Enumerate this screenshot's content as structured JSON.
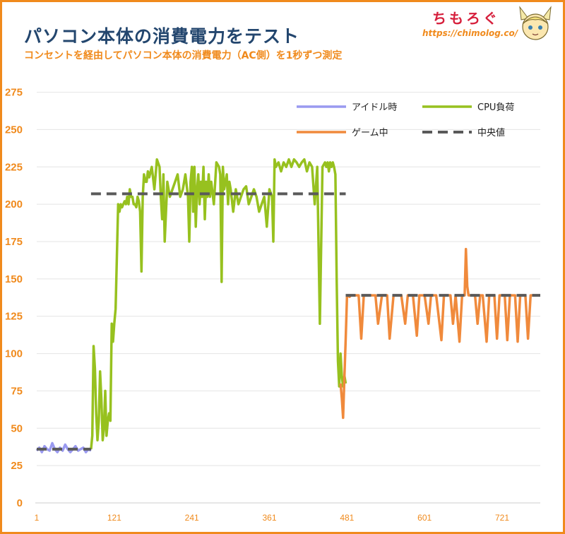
{
  "header": {
    "title": "パソコン本体の消費電力をテスト",
    "subtitle": "コンセントを経由してパソコン本体の消費電力（AC側）を1秒ずつ測定",
    "brand": "ちもろぐ",
    "brand_url": "https://chimolog.co/"
  },
  "colors": {
    "idle": "#9a9af0",
    "cpu": "#97c11f",
    "game": "#f08a3c",
    "median": "#5a5a5a",
    "tick": "#f08a1c",
    "grid": "#e4e4e4"
  },
  "chart_data": {
    "type": "line",
    "title": "",
    "xlabel": "",
    "ylabel": "",
    "xlim": [
      1,
      780
    ],
    "ylim": [
      0,
      280
    ],
    "yticks": [
      0,
      25,
      50,
      75,
      100,
      125,
      150,
      175,
      200,
      225,
      250,
      275
    ],
    "xticks": [
      1,
      121,
      241,
      361,
      481,
      601,
      721
    ],
    "grid": "horizontal",
    "legend_position": "top-right",
    "legend": [
      "アイドル時",
      "CPU負荷",
      "ゲーム中",
      "中央値"
    ],
    "series": [
      {
        "name": "アイドル時",
        "x": [
          1,
          5,
          9,
          13,
          17,
          21,
          25,
          29,
          33,
          37,
          41,
          45,
          49,
          53,
          57,
          61,
          65,
          69,
          73,
          77,
          81,
          85
        ],
        "y": [
          35,
          37,
          34,
          38,
          36,
          35,
          40,
          36,
          34,
          37,
          35,
          39,
          36,
          34,
          36,
          38,
          35,
          36,
          37,
          34,
          36,
          35
        ]
      },
      {
        "name": "CPU負荷",
        "x": [
          85,
          87,
          89,
          91,
          93,
          95,
          97,
          99,
          101,
          103,
          105,
          107,
          109,
          111,
          113,
          115,
          117,
          119,
          121,
          123,
          125,
          127,
          129,
          131,
          133,
          135,
          137,
          139,
          141,
          143,
          145,
          147,
          149,
          151,
          153,
          155,
          157,
          159,
          161,
          163,
          165,
          167,
          169,
          171,
          173,
          175,
          179,
          183,
          187,
          191,
          193,
          195,
          197,
          199,
          203,
          207,
          211,
          215,
          219,
          223,
          227,
          231,
          235,
          237,
          239,
          241,
          243,
          245,
          247,
          249,
          251,
          253,
          255,
          257,
          259,
          261,
          263,
          265,
          267,
          269,
          271,
          275,
          279,
          283,
          285,
          287,
          289,
          291,
          293,
          295,
          297,
          299,
          301,
          305,
          309,
          313,
          317,
          321,
          325,
          329,
          333,
          337,
          341,
          345,
          349,
          353,
          357,
          361,
          365,
          367,
          369,
          371,
          375,
          379,
          383,
          387,
          391,
          395,
          399,
          403,
          407,
          411,
          415,
          419,
          423,
          427,
          431,
          435,
          439,
          443,
          447,
          449,
          451,
          453,
          455,
          457,
          459,
          461,
          463,
          465,
          467,
          469,
          471,
          473,
          475,
          477,
          479
        ],
        "y": [
          36,
          45,
          105,
          90,
          60,
          42,
          55,
          88,
          70,
          42,
          50,
          75,
          45,
          55,
          60,
          55,
          120,
          108,
          120,
          130,
          165,
          200,
          195,
          200,
          198,
          200,
          202,
          200,
          205,
          200,
          210,
          205,
          205,
          200,
          200,
          198,
          205,
          202,
          195,
          155,
          205,
          220,
          215,
          215,
          222,
          218,
          225,
          210,
          230,
          225,
          205,
          190,
          220,
          175,
          215,
          205,
          210,
          215,
          220,
          205,
          210,
          220,
          205,
          175,
          215,
          225,
          195,
          225,
          185,
          210,
          220,
          200,
          215,
          205,
          225,
          190,
          215,
          205,
          220,
          205,
          215,
          200,
          228,
          225,
          220,
          148,
          225,
          210,
          215,
          220,
          200,
          215,
          210,
          195,
          210,
          200,
          205,
          210,
          212,
          200,
          205,
          210,
          205,
          195,
          200,
          205,
          185,
          210,
          205,
          175,
          230,
          225,
          228,
          222,
          228,
          225,
          230,
          225,
          230,
          228,
          225,
          228,
          230,
          222,
          228,
          225,
          200,
          225,
          120,
          225,
          228,
          225,
          228,
          222,
          228,
          225,
          228,
          225,
          220,
          150,
          95,
          78,
          100,
          85,
          78,
          85,
          80
        ]
      },
      {
        "name": "ゲーム中",
        "x": [
          471,
          473,
          475,
          477,
          479,
          481,
          483,
          485,
          487,
          491,
          495,
          499,
          503,
          507,
          511,
          517,
          521,
          525,
          529,
          535,
          539,
          543,
          547,
          553,
          557,
          561,
          565,
          571,
          575,
          579,
          583,
          589,
          593,
          597,
          601,
          607,
          611,
          615,
          619,
          627,
          631,
          637,
          641,
          645,
          649,
          655,
          659,
          663,
          665,
          667,
          669,
          671,
          675,
          679,
          683,
          687,
          691,
          697,
          701,
          705,
          709,
          713,
          717,
          721,
          725,
          729,
          733,
          737,
          741,
          745,
          749,
          753,
          757,
          761,
          765,
          769
        ],
        "y": [
          80,
          70,
          57,
          85,
          110,
          138,
          139,
          138,
          139,
          139,
          139,
          139,
          110,
          139,
          139,
          139,
          139,
          139,
          120,
          139,
          139,
          139,
          110,
          139,
          139,
          139,
          139,
          120,
          139,
          139,
          139,
          112,
          139,
          139,
          139,
          120,
          139,
          139,
          139,
          109,
          139,
          139,
          139,
          120,
          139,
          108,
          139,
          139,
          170,
          145,
          139,
          139,
          139,
          139,
          120,
          139,
          139,
          108,
          139,
          139,
          139,
          110,
          139,
          139,
          139,
          109,
          139,
          139,
          139,
          108,
          139,
          139,
          139,
          110,
          139,
          139
        ]
      },
      {
        "name": "中央値",
        "segments": [
          {
            "x": [
              1,
              85
            ],
            "y": 36
          },
          {
            "x": [
              85,
              479
            ],
            "y": 207
          },
          {
            "x": [
              479,
              780
            ],
            "y": 139
          }
        ]
      }
    ]
  }
}
